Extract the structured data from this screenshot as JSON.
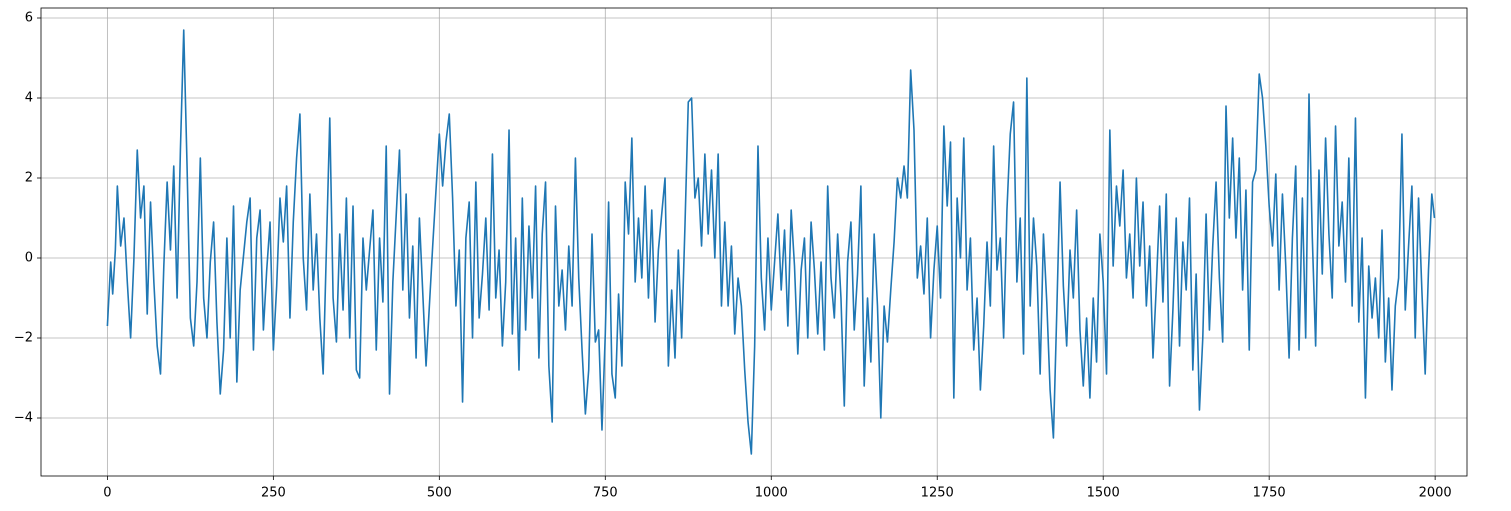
{
  "chart_data": {
    "type": "line",
    "color": "#1f77b4",
    "grid": true,
    "xlim": [
      -100,
      2048
    ],
    "ylim": [
      -5.45,
      6.25
    ],
    "xticks": [
      0,
      250,
      500,
      750,
      1000,
      1250,
      1500,
      1750,
      2000
    ],
    "yticks": [
      {
        "value": -4,
        "label": "−4"
      },
      {
        "value": -2,
        "label": "−2"
      },
      0,
      2,
      4,
      6
    ],
    "x": [
      0,
      5,
      8,
      12,
      15,
      20,
      25,
      30,
      35,
      40,
      45,
      50,
      55,
      60,
      65,
      70,
      75,
      80,
      85,
      90,
      95,
      100,
      105,
      110,
      115,
      120,
      125,
      130,
      135,
      140,
      145,
      150,
      155,
      160,
      165,
      170,
      175,
      180,
      185,
      190,
      195,
      200,
      210,
      215,
      220,
      225,
      230,
      235,
      240,
      245,
      250,
      255,
      260,
      265,
      270,
      275,
      280,
      285,
      290,
      295,
      300,
      305,
      310,
      315,
      320,
      325,
      330,
      335,
      340,
      345,
      350,
      355,
      360,
      365,
      370,
      375,
      380,
      385,
      390,
      400,
      405,
      410,
      415,
      420,
      425,
      430,
      440,
      445,
      450,
      455,
      460,
      465,
      470,
      480,
      485,
      490,
      500,
      505,
      510,
      515,
      520,
      525,
      530,
      535,
      540,
      545,
      550,
      555,
      560,
      565,
      570,
      575,
      580,
      585,
      590,
      595,
      600,
      605,
      610,
      615,
      620,
      625,
      630,
      635,
      640,
      645,
      650,
      655,
      660,
      665,
      670,
      675,
      680,
      685,
      690,
      695,
      700,
      705,
      710,
      715,
      720,
      725,
      730,
      735,
      740,
      745,
      750,
      755,
      760,
      765,
      770,
      775,
      780,
      785,
      790,
      795,
      800,
      805,
      810,
      815,
      820,
      825,
      830,
      840,
      845,
      850,
      855,
      860,
      865,
      870,
      875,
      880,
      885,
      890,
      895,
      900,
      905,
      910,
      915,
      920,
      925,
      930,
      935,
      940,
      945,
      950,
      955,
      960,
      965,
      970,
      975,
      980,
      985,
      990,
      995,
      1000,
      1010,
      1015,
      1020,
      1025,
      1030,
      1035,
      1040,
      1045,
      1050,
      1055,
      1060,
      1065,
      1070,
      1075,
      1080,
      1085,
      1090,
      1095,
      1100,
      1105,
      1110,
      1115,
      1120,
      1125,
      1130,
      1135,
      1140,
      1145,
      1150,
      1155,
      1160,
      1165,
      1170,
      1175,
      1180,
      1185,
      1190,
      1195,
      1200,
      1205,
      1210,
      1215,
      1220,
      1225,
      1230,
      1235,
      1240,
      1245,
      1250,
      1255,
      1260,
      1265,
      1270,
      1275,
      1280,
      1285,
      1290,
      1295,
      1300,
      1305,
      1310,
      1315,
      1320,
      1325,
      1330,
      1335,
      1340,
      1345,
      1350,
      1355,
      1360,
      1365,
      1370,
      1375,
      1380,
      1385,
      1390,
      1395,
      1400,
      1405,
      1410,
      1415,
      1420,
      1425,
      1430,
      1435,
      1440,
      1445,
      1450,
      1455,
      1460,
      1465,
      1470,
      1475,
      1480,
      1485,
      1490,
      1495,
      1500,
      1505,
      1510,
      1515,
      1520,
      1525,
      1530,
      1535,
      1540,
      1545,
      1550,
      1555,
      1560,
      1565,
      1570,
      1575,
      1580,
      1585,
      1590,
      1595,
      1600,
      1605,
      1610,
      1615,
      1620,
      1625,
      1630,
      1635,
      1640,
      1645,
      1650,
      1655,
      1660,
      1665,
      1670,
      1675,
      1680,
      1685,
      1690,
      1695,
      1700,
      1705,
      1710,
      1715,
      1720,
      1725,
      1730,
      1735,
      1740,
      1745,
      1750,
      1755,
      1760,
      1765,
      1770,
      1775,
      1780,
      1785,
      1790,
      1795,
      1800,
      1805,
      1810,
      1815,
      1820,
      1825,
      1830,
      1835,
      1840,
      1845,
      1850,
      1855,
      1860,
      1865,
      1870,
      1875,
      1880,
      1885,
      1890,
      1895,
      1900,
      1905,
      1910,
      1915,
      1920,
      1925,
      1930,
      1935,
      1940,
      1945,
      1950,
      1955,
      1960,
      1965,
      1970,
      1975,
      1980,
      1985,
      1990,
      1995,
      1999
    ],
    "values": [
      -1.7,
      -0.1,
      -0.9,
      0.2,
      1.8,
      0.3,
      1.0,
      -0.6,
      -2.0,
      0.0,
      2.7,
      1.0,
      1.8,
      -1.4,
      1.4,
      -0.6,
      -2.2,
      -2.9,
      -0.2,
      1.9,
      0.2,
      2.3,
      -1.0,
      2.7,
      5.7,
      2.3,
      -1.5,
      -2.2,
      -0.6,
      2.5,
      -1.0,
      -2.0,
      -0.1,
      0.9,
      -1.6,
      -3.4,
      -2.3,
      0.5,
      -2.0,
      1.3,
      -3.1,
      -0.8,
      0.9,
      1.5,
      -2.3,
      0.5,
      1.2,
      -1.8,
      -0.3,
      0.9,
      -2.3,
      -0.7,
      1.5,
      0.4,
      1.8,
      -1.5,
      0.9,
      2.5,
      3.6,
      0.0,
      -1.3,
      1.6,
      -0.8,
      0.6,
      -1.5,
      -2.9,
      0.3,
      3.5,
      -1.0,
      -2.1,
      0.6,
      -1.3,
      1.5,
      -2.0,
      1.3,
      -2.8,
      -3.0,
      0.5,
      -0.8,
      1.2,
      -2.3,
      0.5,
      -1.1,
      2.8,
      -3.4,
      -0.6,
      2.7,
      -0.8,
      1.6,
      -1.5,
      0.3,
      -2.5,
      1.0,
      -2.7,
      -1.2,
      0.3,
      3.1,
      1.8,
      2.9,
      3.6,
      1.5,
      -1.2,
      0.2,
      -3.6,
      0.5,
      1.4,
      -2.0,
      1.9,
      -1.5,
      -0.4,
      1.0,
      -1.3,
      2.6,
      -1.0,
      0.2,
      -2.2,
      -0.6,
      3.2,
      -1.9,
      0.5,
      -2.8,
      1.5,
      -1.8,
      0.8,
      -1.0,
      1.8,
      -2.5,
      0.6,
      1.9,
      -2.7,
      -4.1,
      1.3,
      -1.2,
      -0.3,
      -1.8,
      0.3,
      -1.2,
      2.5,
      -0.5,
      -2.3,
      -3.9,
      -2.8,
      0.6,
      -2.1,
      -1.8,
      -4.3,
      -1.9,
      1.4,
      -2.9,
      -3.5,
      -0.9,
      -2.7,
      1.9,
      0.6,
      3.0,
      -0.6,
      1.0,
      -0.5,
      1.8,
      -1.0,
      1.2,
      -1.6,
      0.2,
      2.0,
      -2.7,
      -0.8,
      -2.5,
      0.2,
      -2.0,
      0.8,
      3.9,
      4.0,
      1.5,
      2.0,
      0.3,
      2.6,
      0.6,
      2.2,
      0.0,
      2.6,
      -1.2,
      0.9,
      -1.2,
      0.3,
      -1.9,
      -0.5,
      -1.2,
      -2.8,
      -4.1,
      -4.9,
      -2.2,
      2.8,
      -0.5,
      -1.8,
      0.5,
      -1.3,
      1.1,
      -0.8,
      0.7,
      -1.7,
      1.2,
      -0.2,
      -2.4,
      -0.3,
      0.5,
      -2.0,
      0.9,
      -0.3,
      -1.9,
      -0.1,
      -2.3,
      1.8,
      -0.5,
      -1.5,
      0.6,
      -1.0,
      -3.7,
      -0.1,
      0.9,
      -1.8,
      -0.4,
      1.8,
      -3.2,
      -1.0,
      -2.6,
      0.6,
      -1.2,
      -4.0,
      -1.2,
      -2.1,
      -0.8,
      0.4,
      2.0,
      1.5,
      2.3,
      1.5,
      4.7,
      3.2,
      -0.5,
      0.3,
      -0.9,
      1.0,
      -2.0,
      -0.3,
      0.8,
      -1.0,
      3.3,
      1.3,
      2.9,
      -3.5,
      1.5,
      0.0,
      3.0,
      -0.8,
      0.5,
      -2.3,
      -1.0,
      -3.3,
      -1.7,
      0.4,
      -1.2,
      2.8,
      -0.3,
      0.5,
      -2.0,
      1.2,
      3.1,
      3.9,
      -0.6,
      1.0,
      -2.4,
      4.5,
      -1.2,
      1.0,
      -0.2,
      -2.9,
      0.6,
      -1.1,
      -3.3,
      -4.5,
      -1.4,
      1.9,
      -0.7,
      -2.2,
      0.2,
      -1.0,
      1.2,
      -1.8,
      -3.2,
      -1.5,
      -3.5,
      -1.0,
      -2.6,
      0.6,
      -0.6,
      -2.9,
      3.2,
      -0.2,
      1.8,
      0.8,
      2.2,
      -0.5,
      0.6,
      -1.0,
      2.0,
      -0.2,
      1.4,
      -1.2,
      0.3,
      -2.5,
      -0.7,
      1.3,
      -1.1,
      1.6,
      -3.2,
      -1.3,
      1.0,
      -2.2,
      0.4,
      -0.8,
      1.5,
      -2.8,
      -0.4,
      -3.8,
      -2.0,
      1.1,
      -1.8,
      0.3,
      1.9,
      -0.5,
      -2.1,
      3.8,
      1.0,
      3.0,
      0.5,
      2.5,
      -0.8,
      1.7,
      -2.3,
      1.9,
      2.2,
      4.6,
      4.0,
      2.8,
      1.3,
      0.3,
      2.1,
      -0.8,
      1.6,
      -0.2,
      -2.5,
      0.5,
      2.3,
      -2.3,
      1.5,
      -2.0,
      4.1,
      0.5,
      -2.2,
      2.2,
      -0.4,
      3.0,
      0.6,
      -1.0,
      3.3,
      0.3,
      1.4,
      -0.6,
      2.5,
      -1.2,
      3.5,
      -1.6,
      0.5,
      -3.5,
      -0.2,
      -1.5,
      -0.5,
      -2.0,
      0.7,
      -2.6,
      -1.0,
      -3.3,
      -1.2,
      -0.5,
      3.1,
      -1.3,
      0.3,
      1.8,
      -2.0,
      1.5,
      -0.8,
      -2.9,
      -0.3,
      1.6,
      1.0
    ]
  }
}
